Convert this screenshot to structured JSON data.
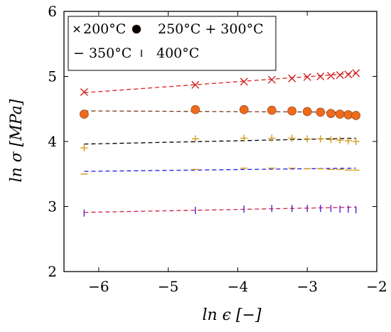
{
  "chart_data": {
    "type": "scatter",
    "xlabel": "ln ϵ [−]",
    "ylabel": "ln σ [MPa]",
    "xlim": [
      -6.5,
      -2
    ],
    "ylim": [
      2,
      6
    ],
    "xticks": [
      {
        "value": -6,
        "label": "−6"
      },
      {
        "value": -5,
        "label": "−5"
      },
      {
        "value": -4,
        "label": "−4"
      },
      {
        "value": -3,
        "label": "−3"
      },
      {
        "value": -2,
        "label": "−2"
      }
    ],
    "yticks": [
      {
        "value": 2,
        "label": "2"
      },
      {
        "value": 3,
        "label": "3"
      },
      {
        "value": 4,
        "label": "4"
      },
      {
        "value": 5,
        "label": "5"
      },
      {
        "value": 6,
        "label": "6"
      }
    ],
    "grid": false,
    "legend_position": "top-left",
    "legend": [
      {
        "label": "200°C",
        "marker": "x",
        "color": "#000000"
      },
      {
        "label": "250°C + 300°C",
        "marker": "circle",
        "color": "#000000"
      },
      {
        "label": "− 350°C",
        "marker": "none",
        "color": "#000000"
      },
      {
        "label": "400°C",
        "marker": "vbar",
        "color": "#000000"
      }
    ],
    "series": [
      {
        "marker": "x",
        "color": "#cc2222",
        "line_color": "#e02020",
        "x": [
          -6.21,
          -4.61,
          -3.91,
          -3.51,
          -3.22,
          -3.0,
          -2.81,
          -2.66,
          -2.53,
          -2.41,
          -2.3
        ],
        "y": [
          4.76,
          4.87,
          4.92,
          4.95,
          4.97,
          4.99,
          5.0,
          5.01,
          5.02,
          5.03,
          5.05
        ],
        "fit": [
          [
            -6.21,
            4.75
          ],
          [
            -2.3,
            5.05
          ]
        ]
      },
      {
        "marker": "circle",
        "color": "#f06a1c",
        "line_color": "#7a3a22",
        "x": [
          -6.21,
          -4.61,
          -3.91,
          -3.51,
          -3.22,
          -3.0,
          -2.81,
          -2.66,
          -2.53,
          -2.41,
          -2.3
        ],
        "y": [
          4.42,
          4.49,
          4.49,
          4.48,
          4.47,
          4.46,
          4.45,
          4.43,
          4.42,
          4.41,
          4.4
        ],
        "fit": [
          [
            -6.21,
            4.47
          ],
          [
            -2.3,
            4.45
          ]
        ]
      },
      {
        "marker": "plus",
        "color": "#d99a18",
        "line_color": "#000000",
        "x": [
          -6.21,
          -4.61,
          -3.91,
          -3.51,
          -3.22,
          -3.0,
          -2.81,
          -2.66,
          -2.53,
          -2.41,
          -2.3
        ],
        "y": [
          3.9,
          4.04,
          4.05,
          4.05,
          4.05,
          4.04,
          4.04,
          4.03,
          4.02,
          4.01,
          4.0
        ],
        "fit": [
          [
            -6.21,
            3.96
          ],
          [
            -2.3,
            4.05
          ]
        ]
      },
      {
        "marker": "hbar",
        "color": "#d99a18",
        "line_color": "#1a1ae0",
        "x": [
          -6.21,
          -4.61,
          -3.91,
          -3.51,
          -3.22,
          -3.0,
          -2.81,
          -2.66,
          -2.53,
          -2.41,
          -2.3
        ],
        "y": [
          3.5,
          3.57,
          3.59,
          3.59,
          3.59,
          3.58,
          3.58,
          3.57,
          3.57,
          3.56,
          3.56
        ],
        "fit": [
          [
            -6.21,
            3.54
          ],
          [
            -2.3,
            3.59
          ]
        ]
      },
      {
        "marker": "vbar",
        "color": "#5a1ad8",
        "line_color": "#cc2244",
        "x": [
          -6.21,
          -4.61,
          -3.91,
          -3.51,
          -3.22,
          -3.0,
          -2.81,
          -2.66,
          -2.53,
          -2.41,
          -2.3
        ],
        "y": [
          2.9,
          2.94,
          2.96,
          2.97,
          2.97,
          2.97,
          2.97,
          2.97,
          2.96,
          2.96,
          2.95
        ],
        "fit": [
          [
            -6.21,
            2.91
          ],
          [
            -2.3,
            2.99
          ]
        ]
      }
    ]
  }
}
